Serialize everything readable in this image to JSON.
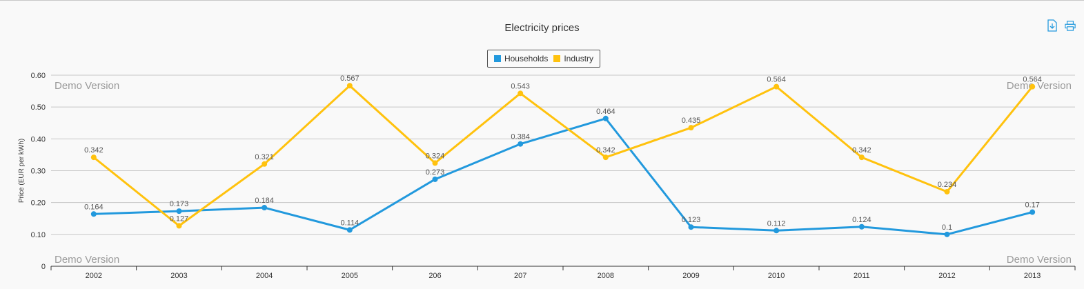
{
  "toolbar": {
    "download_icon": "download-icon",
    "print_icon": "print-icon"
  },
  "watermark": "Demo Version",
  "colors": {
    "households": "#2299dd",
    "industry": "#ffc20e",
    "grid": "#c6c6c6",
    "axis": "#333333"
  },
  "chart_data": {
    "type": "line",
    "title": "Electricity prices",
    "xlabel": "",
    "ylabel": "Price (EUR per kWh)",
    "categories": [
      "2002",
      "2003",
      "2004",
      "2005",
      "206",
      "207",
      "2008",
      "2009",
      "2010",
      "2011",
      "2012",
      "2013"
    ],
    "ylim": [
      0,
      0.6
    ],
    "yticks": [
      "0",
      "0.10",
      "0.20",
      "0.30",
      "0.40",
      "0.50",
      "0.60"
    ],
    "ytick_values": [
      0,
      0.1,
      0.2,
      0.3,
      0.4,
      0.5,
      0.6
    ],
    "grid": true,
    "legend_position": "top-center",
    "series": [
      {
        "name": "Households",
        "values": [
          0.164,
          0.173,
          0.184,
          0.114,
          0.273,
          0.384,
          0.464,
          0.123,
          0.112,
          0.124,
          0.1,
          0.17
        ],
        "labels": [
          "0.164",
          "0.173",
          "0.184",
          "0.114",
          "0.273",
          "0.384",
          "0.464",
          "0.123",
          "0.112",
          "0.124",
          "0.1",
          "0.17"
        ]
      },
      {
        "name": "Industry",
        "values": [
          0.342,
          0.127,
          0.321,
          0.567,
          0.324,
          0.543,
          0.342,
          0.435,
          0.564,
          0.342,
          0.234,
          0.564
        ],
        "labels": [
          "0.342",
          "0.127",
          "0.321",
          "0.567",
          "0.324",
          "0.543",
          "0.342",
          "0.435",
          "0.564",
          "0.342",
          "0.234",
          "0.564"
        ]
      }
    ]
  }
}
